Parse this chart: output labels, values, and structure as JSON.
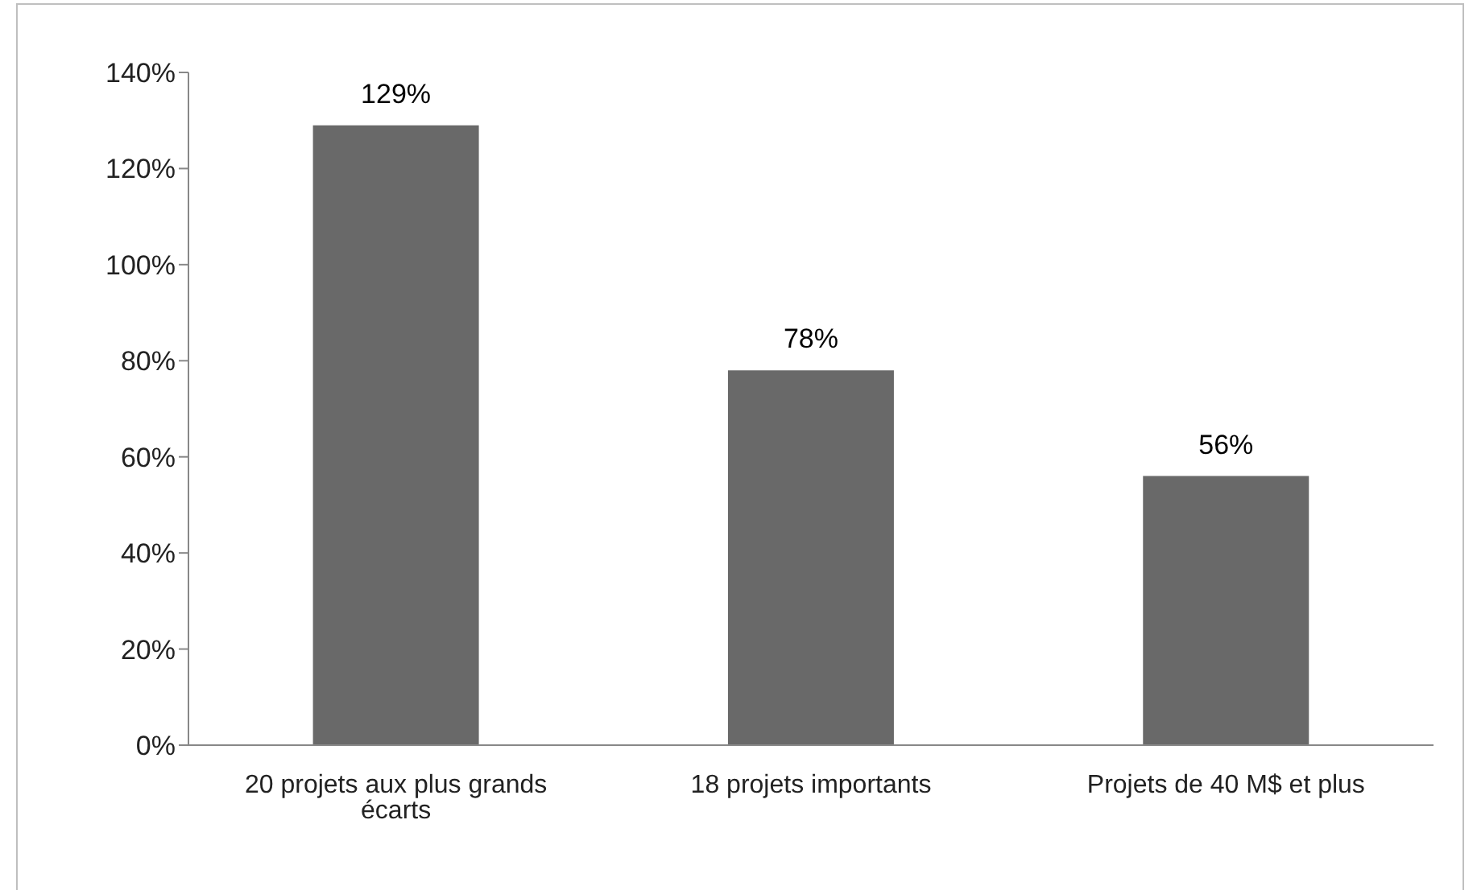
{
  "chart_data": {
    "type": "bar",
    "categories": [
      "20 projets aux plus grands écarts",
      "18 projets importants",
      "Projets de 40 M$ et plus"
    ],
    "values": [
      129,
      78,
      56
    ],
    "value_labels": [
      "129%",
      "78%",
      "56%"
    ],
    "color": "#696969",
    "ylim": [
      0,
      140
    ],
    "yticks": [
      {
        "value": 0,
        "label": "0%"
      },
      {
        "value": 20,
        "label": "20%"
      },
      {
        "value": 40,
        "label": "40%"
      },
      {
        "value": 60,
        "label": "60%"
      },
      {
        "value": 80,
        "label": "80%"
      },
      {
        "value": 100,
        "label": "100%"
      },
      {
        "value": 120,
        "label": "120%"
      },
      {
        "value": 140,
        "label": "140%"
      }
    ],
    "grid": false,
    "legend": false
  }
}
